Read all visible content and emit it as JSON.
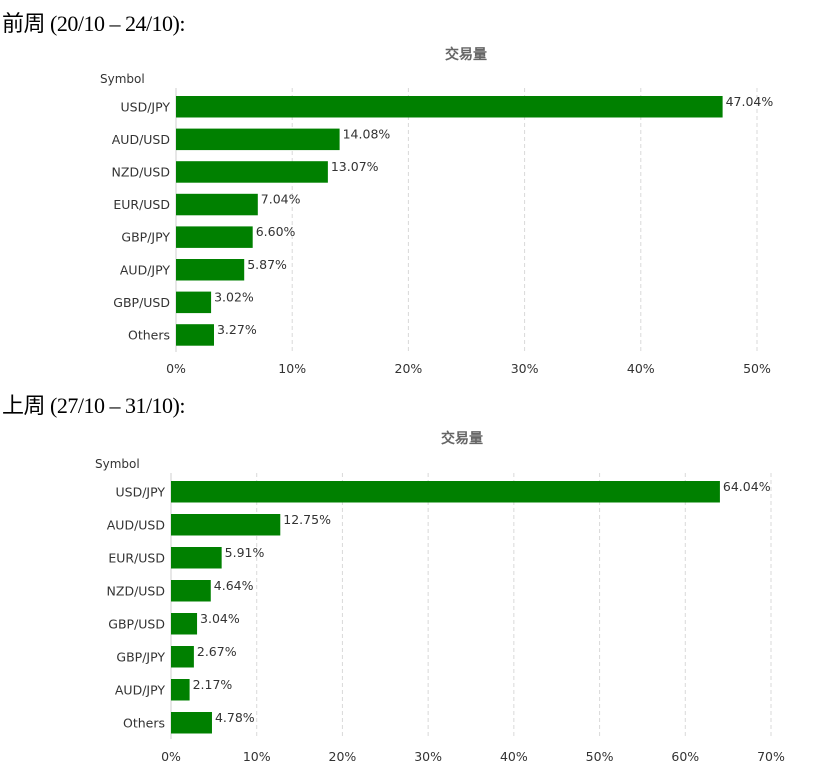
{
  "headings": [
    "前周 (20/10 – 24/10):",
    "上周 (27/10 – 31/10):"
  ],
  "chart_data": [
    {
      "type": "bar",
      "orientation": "horizontal",
      "title": "交易量",
      "ylabel": "Symbol",
      "categories": [
        "USD/JPY",
        "AUD/USD",
        "NZD/USD",
        "EUR/USD",
        "GBP/JPY",
        "AUD/JPY",
        "GBP/USD",
        "Others"
      ],
      "values": [
        47.04,
        14.08,
        13.07,
        7.04,
        6.6,
        5.87,
        3.02,
        3.27
      ],
      "value_labels": [
        "47.04%",
        "14.08%",
        "13.07%",
        "7.04%",
        "6.60%",
        "5.87%",
        "3.02%",
        "3.27%"
      ],
      "xlim": [
        0,
        50
      ],
      "xticks": [
        "0%",
        "10%",
        "20%",
        "30%",
        "40%",
        "50%"
      ],
      "grid": true,
      "bar_color": "#008000"
    },
    {
      "type": "bar",
      "orientation": "horizontal",
      "title": "交易量",
      "ylabel": "Symbol",
      "categories": [
        "USD/JPY",
        "AUD/USD",
        "EUR/USD",
        "NZD/USD",
        "GBP/USD",
        "GBP/JPY",
        "AUD/JPY",
        "Others"
      ],
      "values": [
        64.04,
        12.75,
        5.91,
        4.64,
        3.04,
        2.67,
        2.17,
        4.78
      ],
      "value_labels": [
        "64.04%",
        "12.75%",
        "5.91%",
        "4.64%",
        "3.04%",
        "2.67%",
        "2.17%",
        "4.78%"
      ],
      "xlim": [
        0,
        70
      ],
      "xticks": [
        "0%",
        "10%",
        "20%",
        "30%",
        "40%",
        "50%",
        "60%",
        "70%"
      ],
      "grid": true,
      "bar_color": "#008000"
    }
  ]
}
